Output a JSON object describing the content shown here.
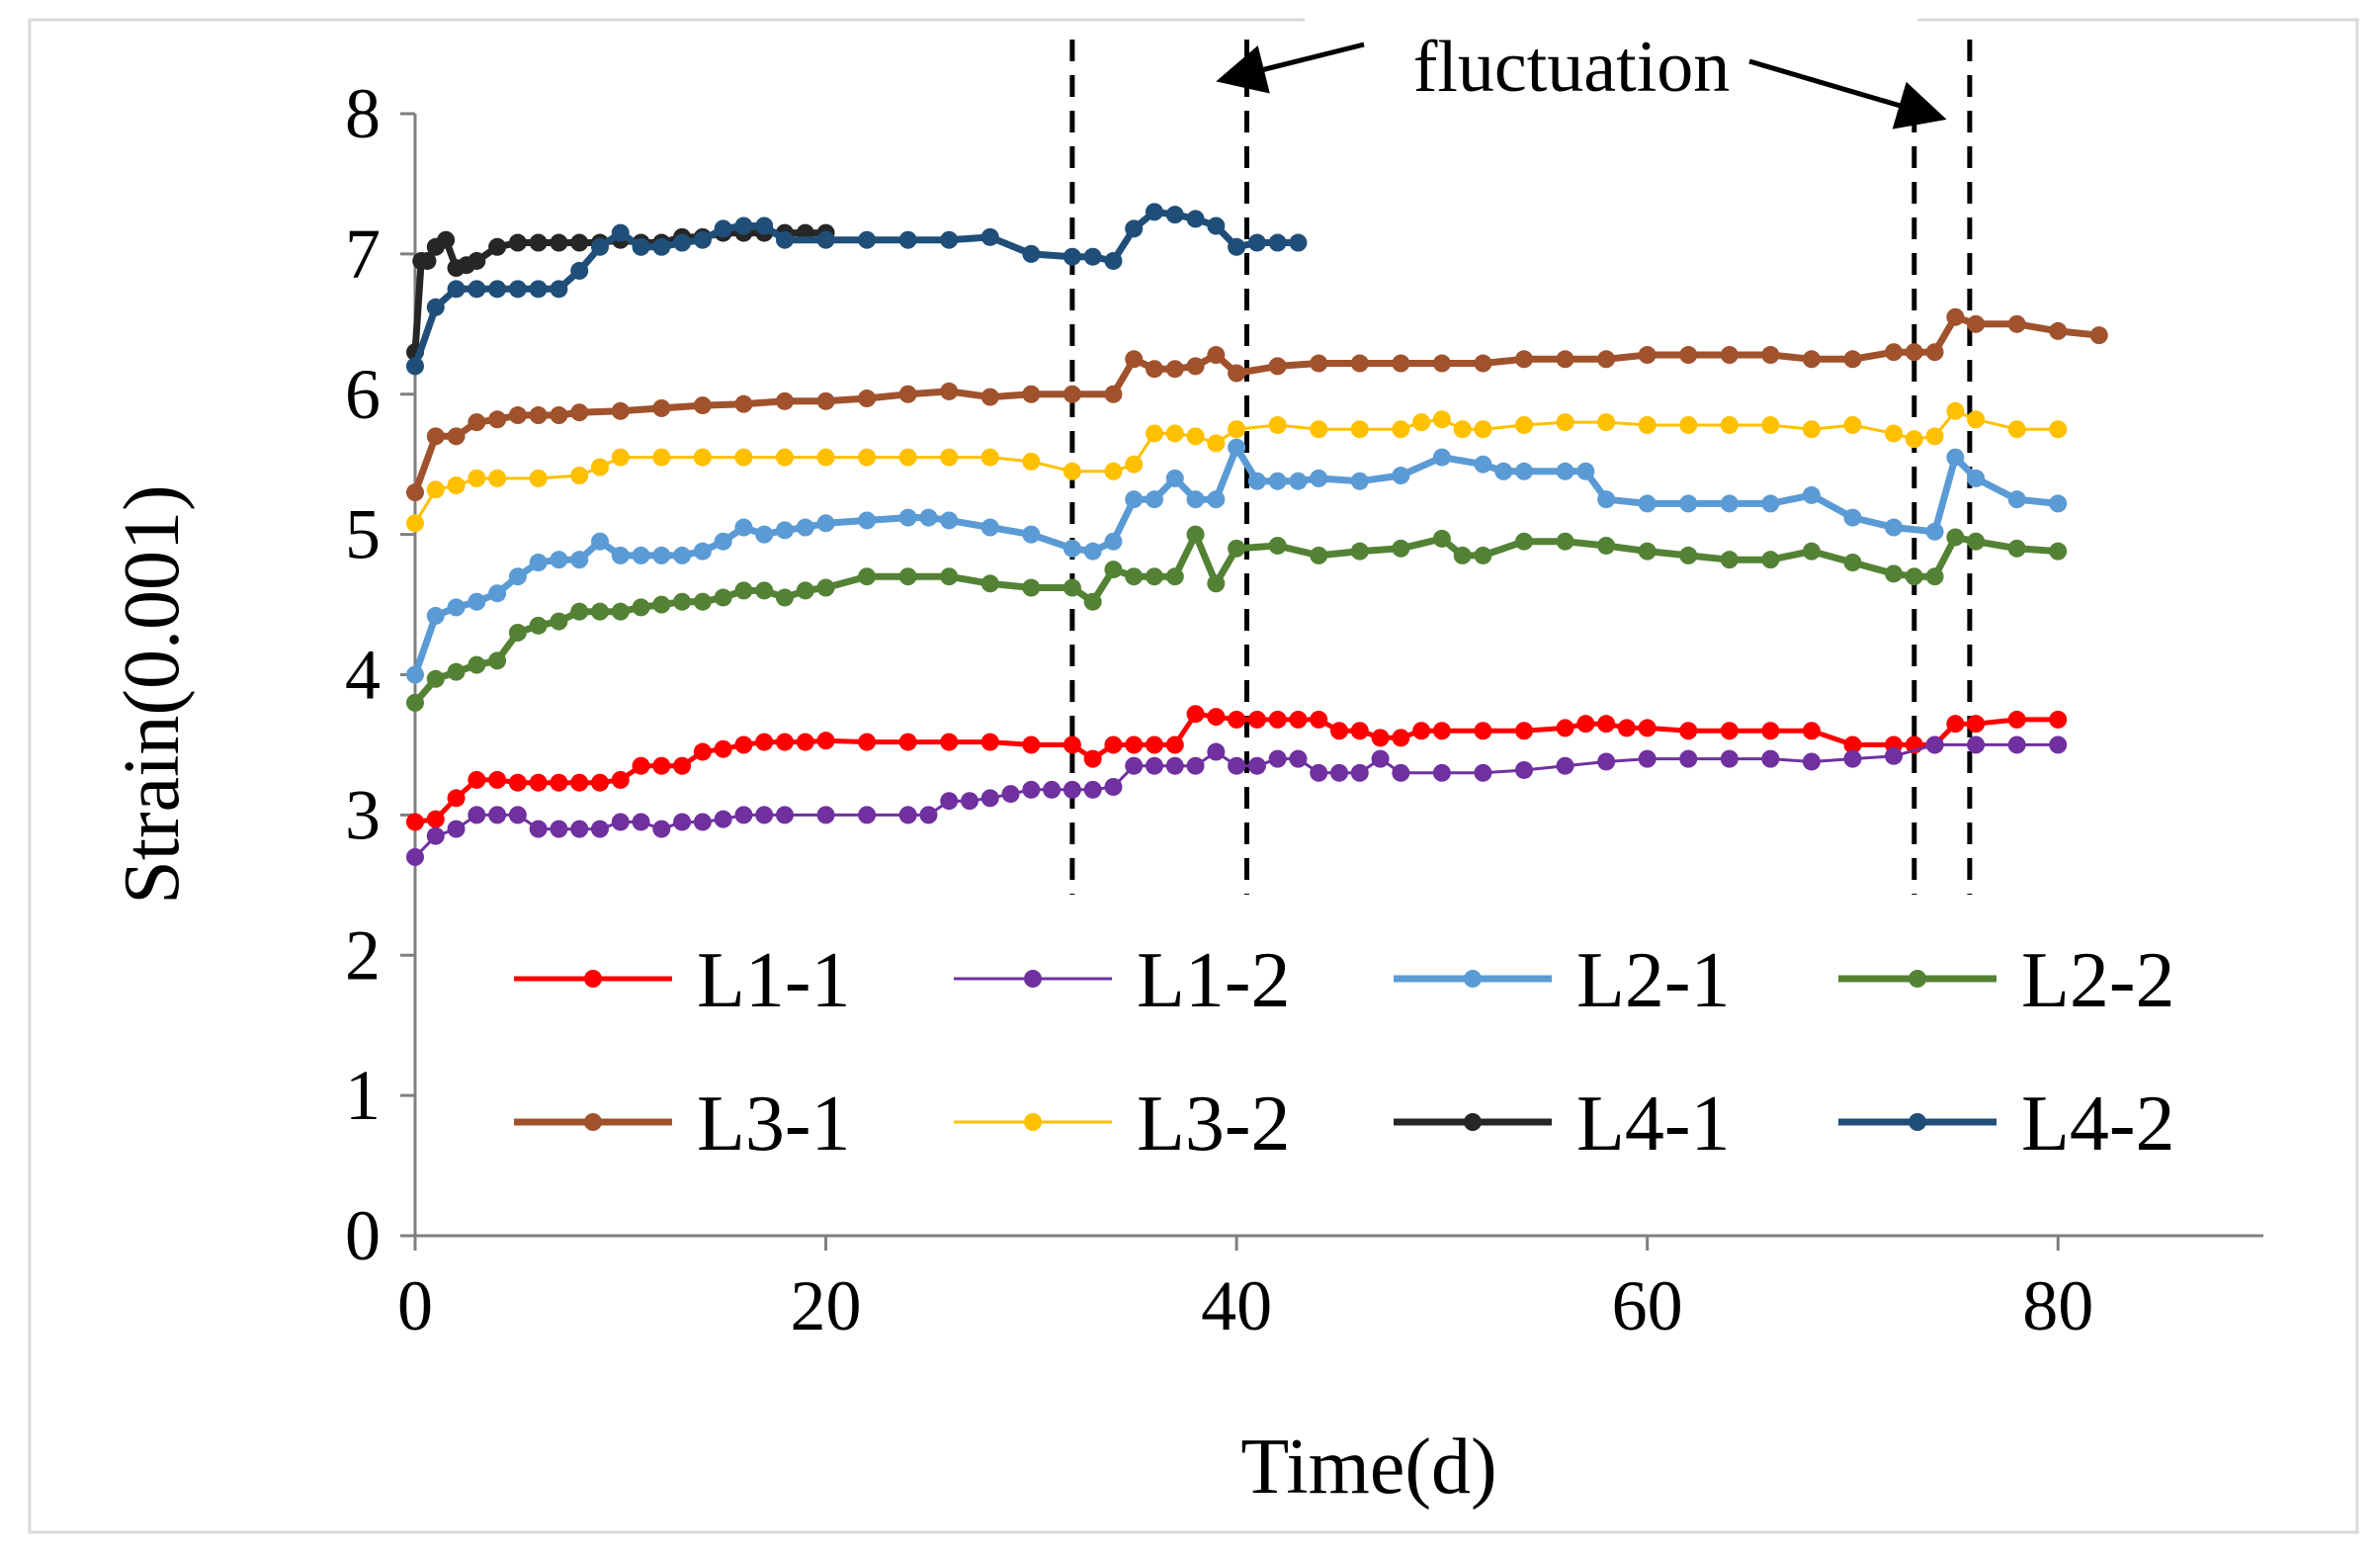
{
  "chart_data": {
    "type": "line",
    "title": "",
    "xlabel": "Time(d)",
    "ylabel": "Strain(0.001)",
    "xlim": [
      0,
      90
    ],
    "ylim": [
      0,
      8
    ],
    "xticks": [
      0,
      20,
      40,
      60,
      80
    ],
    "yticks": [
      0,
      1,
      2,
      3,
      4,
      5,
      6,
      7,
      8
    ],
    "grid": false,
    "legend_position": "inside-bottom",
    "annotation": {
      "text": "fluctuation",
      "regions": [
        [
          32,
          40.5
        ],
        [
          73,
          75.7
        ]
      ]
    },
    "series": [
      {
        "name": "L1-1",
        "color": "#ff0000",
        "width": 5,
        "x": [
          0,
          1,
          2,
          3,
          4,
          5,
          6,
          7,
          8,
          9,
          10,
          11,
          12,
          13,
          14,
          15,
          16,
          17,
          18,
          19,
          20,
          22,
          24,
          26,
          28,
          30,
          32,
          33,
          34,
          35,
          36,
          37,
          38,
          39,
          40,
          41,
          42,
          43,
          44,
          45,
          46,
          47,
          48,
          49,
          50,
          52,
          54,
          56,
          57,
          58,
          59,
          60,
          62,
          64,
          66,
          68,
          70,
          72,
          73,
          74,
          75,
          76,
          78,
          80
        ],
        "y": [
          2.95,
          2.97,
          3.12,
          3.25,
          3.25,
          3.23,
          3.23,
          3.23,
          3.23,
          3.23,
          3.25,
          3.35,
          3.35,
          3.35,
          3.45,
          3.47,
          3.5,
          3.52,
          3.52,
          3.52,
          3.53,
          3.52,
          3.52,
          3.52,
          3.52,
          3.5,
          3.5,
          3.4,
          3.5,
          3.5,
          3.5,
          3.5,
          3.72,
          3.7,
          3.68,
          3.68,
          3.68,
          3.68,
          3.68,
          3.6,
          3.6,
          3.55,
          3.55,
          3.6,
          3.6,
          3.6,
          3.6,
          3.62,
          3.65,
          3.65,
          3.62,
          3.62,
          3.6,
          3.6,
          3.6,
          3.6,
          3.5,
          3.5,
          3.5,
          3.5,
          3.65,
          3.65,
          3.68,
          3.68
        ]
      },
      {
        "name": "L1-2",
        "color": "#7030a0",
        "width": 3,
        "x": [
          0,
          1,
          2,
          3,
          4,
          5,
          6,
          7,
          8,
          9,
          10,
          11,
          12,
          13,
          14,
          15,
          16,
          17,
          18,
          20,
          22,
          24,
          25,
          26,
          27,
          28,
          29,
          30,
          31,
          32,
          33,
          34,
          35,
          36,
          37,
          38,
          39,
          40,
          41,
          42,
          43,
          44,
          45,
          46,
          47,
          48,
          50,
          52,
          54,
          56,
          58,
          60,
          62,
          64,
          66,
          68,
          70,
          72,
          74,
          76,
          78,
          80
        ],
        "y": [
          2.7,
          2.85,
          2.9,
          3.0,
          3.0,
          3.0,
          2.9,
          2.9,
          2.9,
          2.9,
          2.95,
          2.95,
          2.9,
          2.95,
          2.95,
          2.97,
          3.0,
          3.0,
          3.0,
          3.0,
          3.0,
          3.0,
          3.0,
          3.1,
          3.1,
          3.12,
          3.15,
          3.18,
          3.18,
          3.18,
          3.18,
          3.2,
          3.35,
          3.35,
          3.35,
          3.35,
          3.45,
          3.35,
          3.35,
          3.4,
          3.4,
          3.3,
          3.3,
          3.3,
          3.4,
          3.3,
          3.3,
          3.3,
          3.32,
          3.35,
          3.38,
          3.4,
          3.4,
          3.4,
          3.4,
          3.38,
          3.4,
          3.42,
          3.5,
          3.5,
          3.5,
          3.5
        ]
      },
      {
        "name": "L2-1",
        "color": "#5b9bd5",
        "width": 7,
        "x": [
          0,
          1,
          2,
          3,
          4,
          5,
          6,
          7,
          8,
          9,
          10,
          11,
          12,
          13,
          14,
          15,
          16,
          17,
          18,
          19,
          20,
          22,
          24,
          25,
          26,
          28,
          30,
          32,
          33,
          34,
          35,
          36,
          37,
          38,
          39,
          40,
          41,
          42,
          43,
          44,
          46,
          48,
          50,
          52,
          53,
          54,
          56,
          57,
          58,
          60,
          62,
          64,
          66,
          68,
          70,
          72,
          74,
          75,
          76,
          78,
          80
        ],
        "y": [
          4.0,
          4.42,
          4.48,
          4.52,
          4.58,
          4.7,
          4.8,
          4.82,
          4.82,
          4.95,
          4.85,
          4.85,
          4.85,
          4.85,
          4.88,
          4.95,
          5.05,
          5.0,
          5.03,
          5.05,
          5.08,
          5.1,
          5.12,
          5.12,
          5.1,
          5.05,
          5.0,
          4.9,
          4.88,
          4.95,
          5.25,
          5.25,
          5.4,
          5.25,
          5.25,
          5.62,
          5.38,
          5.38,
          5.38,
          5.4,
          5.38,
          5.42,
          5.55,
          5.5,
          5.45,
          5.45,
          5.45,
          5.45,
          5.25,
          5.22,
          5.22,
          5.22,
          5.22,
          5.28,
          5.12,
          5.05,
          5.02,
          5.55,
          5.4,
          5.25,
          5.22
        ]
      },
      {
        "name": "L2-2",
        "color": "#548235",
        "width": 7,
        "x": [
          0,
          1,
          2,
          3,
          4,
          5,
          6,
          7,
          8,
          9,
          10,
          11,
          12,
          13,
          14,
          15,
          16,
          17,
          18,
          19,
          20,
          22,
          24,
          26,
          28,
          30,
          32,
          33,
          34,
          35,
          36,
          37,
          38,
          39,
          40,
          42,
          44,
          46,
          48,
          50,
          51,
          52,
          54,
          56,
          58,
          60,
          62,
          64,
          66,
          68,
          70,
          72,
          73,
          74,
          75,
          76,
          78,
          80
        ],
        "y": [
          3.8,
          3.97,
          4.02,
          4.07,
          4.1,
          4.3,
          4.35,
          4.38,
          4.45,
          4.45,
          4.45,
          4.48,
          4.5,
          4.52,
          4.52,
          4.55,
          4.6,
          4.6,
          4.55,
          4.6,
          4.62,
          4.7,
          4.7,
          4.7,
          4.65,
          4.62,
          4.62,
          4.52,
          4.75,
          4.7,
          4.7,
          4.7,
          5.0,
          4.65,
          4.9,
          4.92,
          4.85,
          4.88,
          4.9,
          4.97,
          4.85,
          4.85,
          4.95,
          4.95,
          4.92,
          4.88,
          4.85,
          4.82,
          4.82,
          4.88,
          4.8,
          4.72,
          4.7,
          4.7,
          4.98,
          4.95,
          4.9,
          4.88
        ]
      },
      {
        "name": "L3-1",
        "color": "#a0522d",
        "width": 7,
        "x": [
          0,
          1,
          2,
          3,
          4,
          5,
          6,
          7,
          8,
          10,
          12,
          14,
          16,
          18,
          20,
          22,
          24,
          26,
          28,
          30,
          32,
          34,
          35,
          36,
          37,
          38,
          39,
          40,
          42,
          44,
          46,
          48,
          50,
          52,
          54,
          56,
          58,
          60,
          62,
          64,
          66,
          68,
          70,
          72,
          73,
          74,
          75,
          76,
          78,
          80,
          82
        ],
        "y": [
          5.3,
          5.7,
          5.7,
          5.8,
          5.82,
          5.85,
          5.85,
          5.85,
          5.87,
          5.88,
          5.9,
          5.92,
          5.93,
          5.95,
          5.95,
          5.97,
          6.0,
          6.02,
          5.98,
          6.0,
          6.0,
          6.0,
          6.25,
          6.18,
          6.18,
          6.2,
          6.28,
          6.15,
          6.2,
          6.22,
          6.22,
          6.22,
          6.22,
          6.22,
          6.25,
          6.25,
          6.25,
          6.28,
          6.28,
          6.28,
          6.28,
          6.25,
          6.25,
          6.3,
          6.3,
          6.3,
          6.55,
          6.5,
          6.5,
          6.45,
          6.42
        ]
      },
      {
        "name": "L3-2",
        "color": "#ffc000",
        "width": 3,
        "x": [
          0,
          1,
          2,
          3,
          4,
          6,
          8,
          9,
          10,
          12,
          14,
          16,
          18,
          20,
          22,
          24,
          26,
          28,
          30,
          32,
          34,
          35,
          36,
          37,
          38,
          39,
          40,
          42,
          44,
          46,
          48,
          49,
          50,
          51,
          52,
          54,
          56,
          58,
          60,
          62,
          64,
          66,
          68,
          70,
          72,
          73,
          74,
          75,
          76,
          78,
          80
        ],
        "y": [
          5.08,
          5.32,
          5.35,
          5.4,
          5.4,
          5.4,
          5.42,
          5.48,
          5.55,
          5.55,
          5.55,
          5.55,
          5.55,
          5.55,
          5.55,
          5.55,
          5.55,
          5.55,
          5.52,
          5.45,
          5.45,
          5.5,
          5.72,
          5.72,
          5.7,
          5.65,
          5.75,
          5.78,
          5.75,
          5.75,
          5.75,
          5.8,
          5.82,
          5.75,
          5.75,
          5.78,
          5.8,
          5.8,
          5.78,
          5.78,
          5.78,
          5.78,
          5.75,
          5.78,
          5.72,
          5.68,
          5.7,
          5.88,
          5.82,
          5.75,
          5.75
        ]
      },
      {
        "name": "L4-1",
        "color": "#262626",
        "width": 7,
        "x": [
          0,
          0.3,
          0.6,
          1,
          1.5,
          2,
          2.5,
          3,
          4,
          5,
          6,
          7,
          8,
          9,
          10,
          11,
          12,
          13,
          14,
          15,
          16,
          17,
          18,
          19,
          20
        ],
        "y": [
          6.3,
          6.95,
          6.95,
          7.05,
          7.1,
          6.9,
          6.92,
          6.95,
          7.05,
          7.08,
          7.08,
          7.08,
          7.08,
          7.08,
          7.1,
          7.08,
          7.08,
          7.12,
          7.12,
          7.15,
          7.15,
          7.15,
          7.15,
          7.15,
          7.15
        ]
      },
      {
        "name": "L4-2",
        "color": "#1f4e79",
        "width": 7,
        "x": [
          0,
          1,
          2,
          3,
          4,
          5,
          6,
          7,
          8,
          9,
          10,
          11,
          12,
          13,
          14,
          15,
          16,
          17,
          18,
          20,
          22,
          24,
          26,
          28,
          30,
          32,
          33,
          34,
          35,
          36,
          37,
          38,
          39,
          40,
          41,
          42,
          43
        ],
        "y": [
          6.2,
          6.62,
          6.75,
          6.75,
          6.75,
          6.75,
          6.75,
          6.75,
          6.88,
          7.05,
          7.15,
          7.05,
          7.05,
          7.08,
          7.1,
          7.18,
          7.2,
          7.2,
          7.1,
          7.1,
          7.1,
          7.1,
          7.1,
          7.12,
          7.0,
          6.98,
          6.98,
          6.95,
          7.18,
          7.3,
          7.28,
          7.25,
          7.2,
          7.05,
          7.08,
          7.08,
          7.08
        ]
      }
    ]
  }
}
